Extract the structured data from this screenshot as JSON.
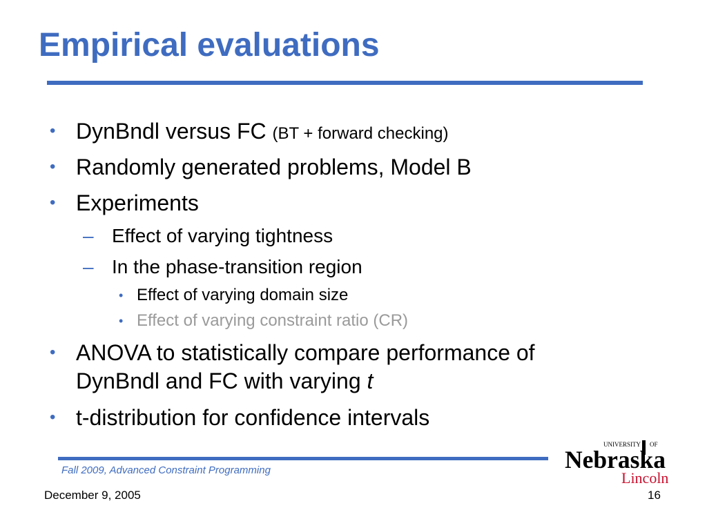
{
  "slide": {
    "title": "Empirical evaluations",
    "bullets": [
      {
        "text": "DynBndl versus FC",
        "suffix": "(BT + forward checking)"
      },
      {
        "text": "Randomly generated problems, Model B"
      },
      {
        "text": "Experiments",
        "sub": [
          {
            "text": "Effect of varying tightness"
          },
          {
            "text": "In the phase-transition region",
            "sub": [
              {
                "text": "Effect of varying domain size"
              },
              {
                "text": "Effect of varying constraint ratio (CR)",
                "dimmed": true
              }
            ]
          }
        ]
      },
      {
        "line1": "ANOVA to statistically compare performance of",
        "line2": "DynBndl and FC with varying",
        "line2_italic": "t"
      },
      {
        "text": "t-distribution for confidence intervals"
      }
    ],
    "bullet_marks": {
      "level1": "•",
      "level2": "–",
      "level3": "•"
    }
  },
  "footer": {
    "course": "Fall 2009, Advanced Constraint Programming",
    "date": "December 9, 2005",
    "page": "16",
    "logo": {
      "top": "UNIVERSITY",
      "of": "OF",
      "name": "Nebraska",
      "city": "Lincoln",
      "icon": "university-of-nebraska-lincoln-logo"
    }
  },
  "colors": {
    "accent": "#3f6cc0",
    "text": "#000000",
    "dimmed": "#9a9a9a",
    "logo_red": "#c8102e"
  }
}
